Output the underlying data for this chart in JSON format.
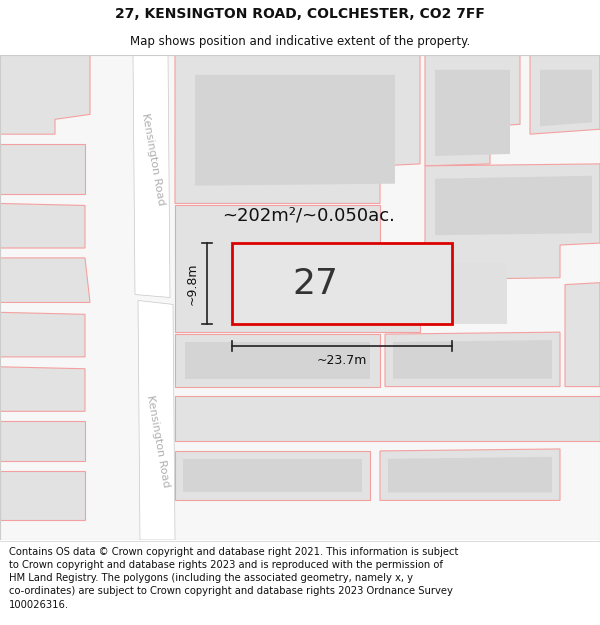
{
  "title": "27, KENSINGTON ROAD, COLCHESTER, CO2 7FF",
  "subtitle": "Map shows position and indicative extent of the property.",
  "footer": "Contains OS data © Crown copyright and database right 2021. This information is subject\nto Crown copyright and database rights 2023 and is reproduced with the permission of\nHM Land Registry. The polygons (including the associated geometry, namely x, y\nco-ordinates) are subject to Crown copyright and database rights 2023 Ordnance Survey\n100026316.",
  "map_bg": "#f7f7f7",
  "road_color": "#ffffff",
  "plot_fill": "#e2e2e2",
  "plot_border": "#f5a0a0",
  "highlight_fill": "#e6e6e6",
  "highlight_border": "#dd0000",
  "dim_line_color": "#222222",
  "area_text": "~202m²/~0.050ac.",
  "number_text": "27",
  "dim_width": "~23.7m",
  "dim_height": "~9.8m",
  "road_label": "Kensington Road",
  "title_fontsize": 10,
  "subtitle_fontsize": 8.5,
  "footer_fontsize": 7.2,
  "map_border_color": "#cccccc"
}
